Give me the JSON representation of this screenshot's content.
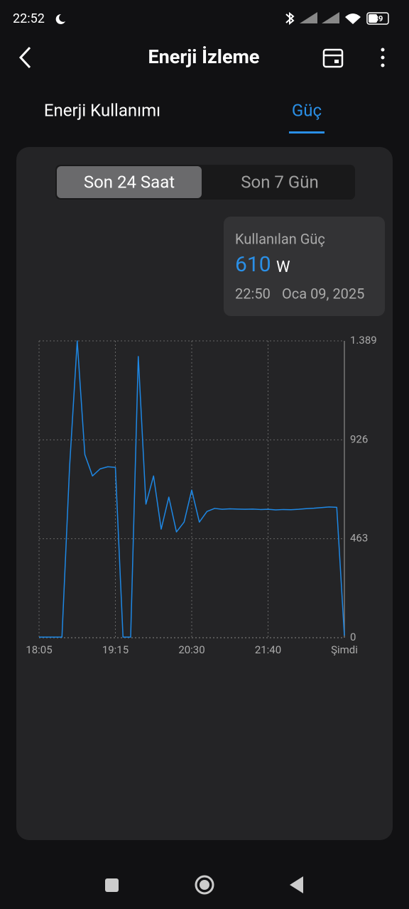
{
  "status_bar": {
    "time": "22:52",
    "battery": "39"
  },
  "header": {
    "title": "Enerji İzleme"
  },
  "tabs": [
    "Enerji Kullanımı",
    "Güç"
  ],
  "segments": [
    "Son 24 Saat",
    "Son 7 Gün"
  ],
  "tooltip": {
    "label": "Kullanılan Güç",
    "value": 610,
    "unit": "W",
    "time": "22:50",
    "date": "Oca 09, 2025"
  },
  "chart_data": {
    "type": "line",
    "categories": [
      "18:05",
      null,
      null,
      null,
      null,
      null,
      null,
      null,
      null,
      null,
      "19:15",
      null,
      null,
      null,
      null,
      null,
      null,
      null,
      null,
      null,
      "20:30",
      null,
      null,
      null,
      null,
      null,
      null,
      null,
      null,
      null,
      "21:40",
      null,
      null,
      null,
      null,
      null,
      null,
      null,
      null,
      null,
      "Şimdi"
    ],
    "series": [
      {
        "name": "Kullanılan Güç",
        "color": "#1e88e5",
        "values": [
          3,
          3,
          3,
          3,
          800,
          1389,
          857,
          757,
          790,
          800,
          797,
          3,
          3,
          1316,
          625,
          757,
          508,
          658,
          495,
          541,
          691,
          541,
          591,
          605,
          601,
          603,
          602,
          601,
          602,
          600,
          601,
          598,
          600,
          599,
          601,
          604,
          606,
          609,
          612,
          610,
          10
        ]
      }
    ],
    "ylim": [
      0,
      1389
    ],
    "yticks": [
      0,
      463,
      926,
      {
        "value": 1389,
        "label": "1.389"
      }
    ],
    "grid": true
  }
}
